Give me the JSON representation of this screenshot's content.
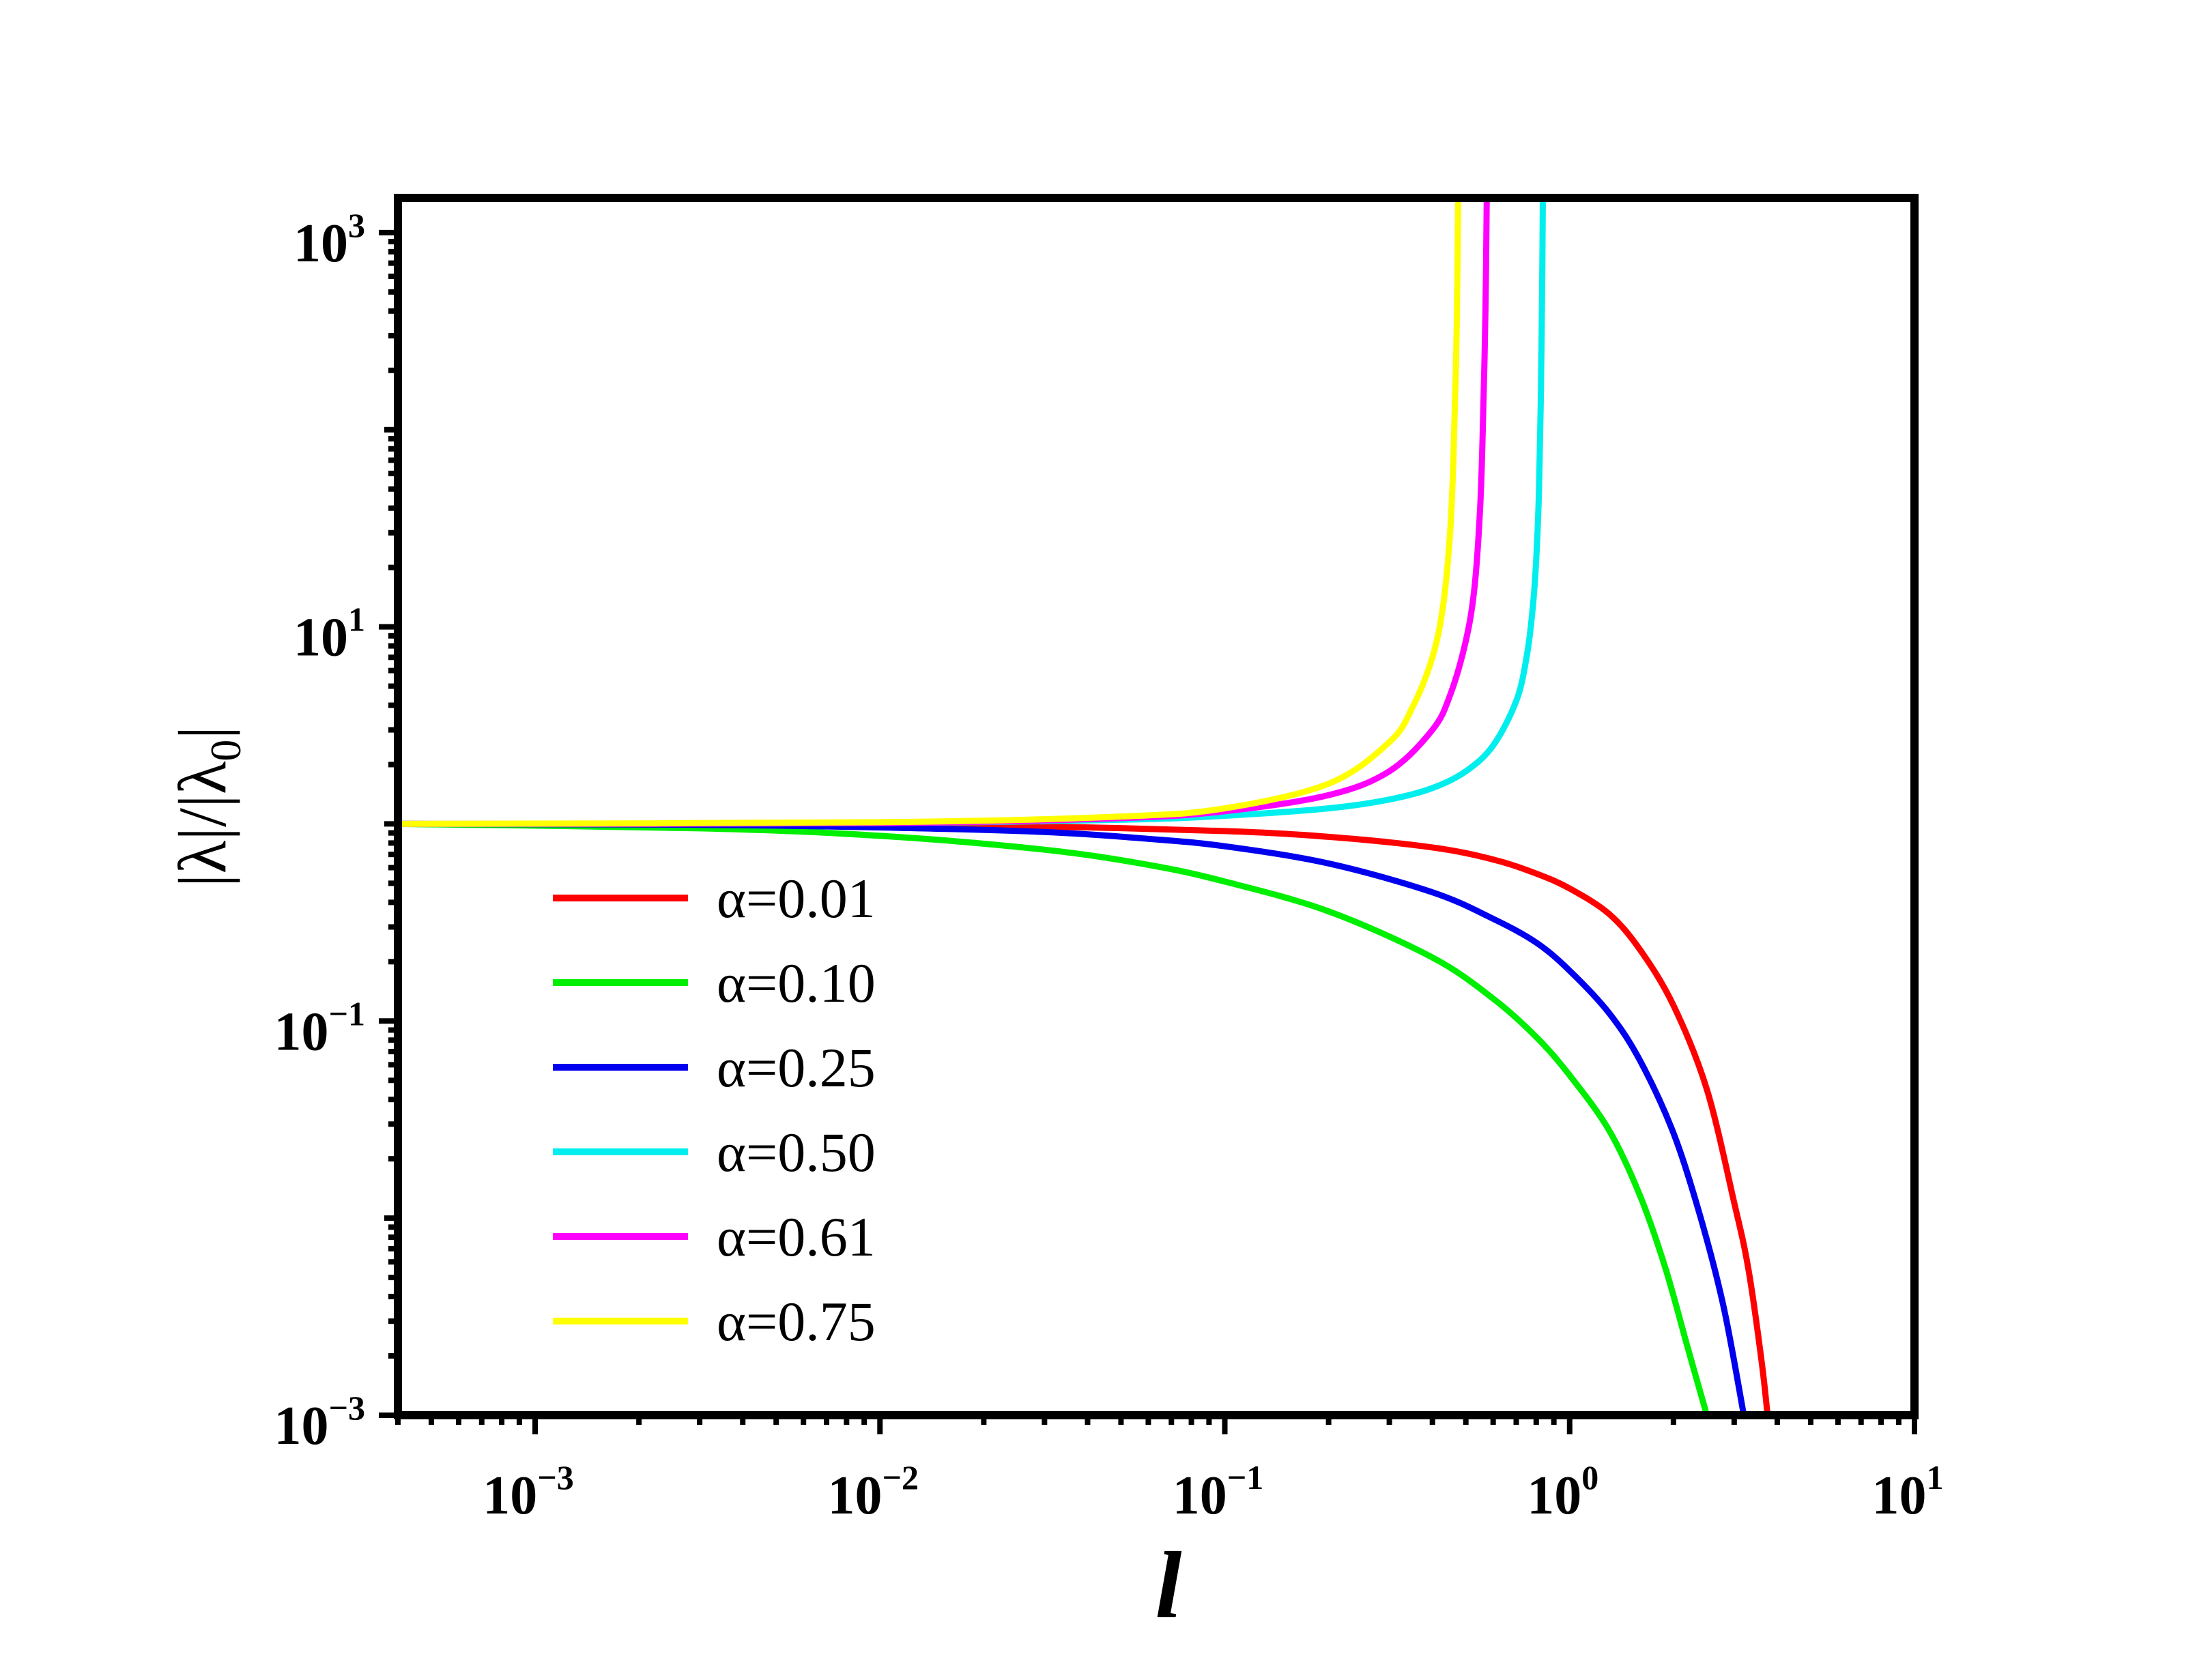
{
  "chart_data": {
    "type": "line",
    "title": "",
    "xlabel": "l",
    "ylabel": "|λ|/|λ0|",
    "ylabel_parts": {
      "prefix": "|λ|/|λ",
      "subscript": "0",
      "suffix": "|"
    },
    "xscale": "log",
    "yscale": "log",
    "xlim": [
      0.0004,
      10
    ],
    "ylim": [
      0.001,
      1500
    ],
    "x_ticks": [
      {
        "value": 0.001,
        "base": "10",
        "exp": "−3"
      },
      {
        "value": 0.01,
        "base": "10",
        "exp": "−2"
      },
      {
        "value": 0.1,
        "base": "10",
        "exp": "−1"
      },
      {
        "value": 1,
        "base": "10",
        "exp": "0"
      },
      {
        "value": 10,
        "base": "10",
        "exp": "1"
      }
    ],
    "y_ticks": [
      {
        "value": 0.001,
        "base": "10",
        "exp": "−3"
      },
      {
        "value": 0.1,
        "base": "10",
        "exp": "−1"
      },
      {
        "value": 10,
        "base": "10",
        "exp": "1"
      },
      {
        "value": 1000,
        "base": "10",
        "exp": "3"
      }
    ],
    "legend_position": "lower-left",
    "grid": false,
    "series": [
      {
        "name": "α=0.01",
        "color": "#ff0000",
        "x": [
          0.0004,
          0.01,
          0.03,
          0.1,
          0.2,
          0.4,
          0.6,
          0.8,
          1.0,
          1.3,
          1.6,
          2.0,
          2.5,
          3.0,
          3.3,
          3.6,
          3.75
        ],
        "y": [
          1.0,
          0.99,
          0.97,
          0.92,
          0.86,
          0.76,
          0.66,
          0.56,
          0.47,
          0.35,
          0.23,
          0.12,
          0.045,
          0.012,
          0.0055,
          0.0019,
          0.001
        ]
      },
      {
        "name": "α=0.10",
        "color": "#00ee00",
        "x": [
          0.0004,
          0.003,
          0.01,
          0.03,
          0.06,
          0.1,
          0.2,
          0.4,
          0.6,
          0.8,
          1.0,
          1.3,
          1.6,
          1.9,
          2.2,
          2.5
        ],
        "y": [
          1.0,
          0.95,
          0.87,
          0.74,
          0.62,
          0.51,
          0.36,
          0.21,
          0.13,
          0.083,
          0.053,
          0.028,
          0.013,
          0.0055,
          0.0022,
          0.001
        ]
      },
      {
        "name": "α=0.25",
        "color": "#0000ee",
        "x": [
          0.0004,
          0.003,
          0.01,
          0.03,
          0.06,
          0.1,
          0.2,
          0.4,
          0.6,
          0.8,
          1.0,
          1.3,
          1.6,
          2.0,
          2.4,
          2.8,
          3.2
        ],
        "y": [
          1.0,
          0.99,
          0.96,
          0.91,
          0.84,
          0.77,
          0.63,
          0.45,
          0.33,
          0.25,
          0.18,
          0.11,
          0.063,
          0.027,
          0.01,
          0.0035,
          0.001
        ]
      },
      {
        "name": "α=0.50",
        "color": "#00eeee",
        "x": [
          0.0004,
          0.01,
          0.05,
          0.1,
          0.2,
          0.3,
          0.4,
          0.5,
          0.6,
          0.7,
          0.75,
          0.78,
          0.8,
          0.815,
          0.825,
          0.832,
          0.836
        ],
        "y": [
          1.0,
          1.01,
          1.05,
          1.1,
          1.2,
          1.33,
          1.52,
          1.85,
          2.5,
          4.2,
          7.0,
          12,
          22,
          50,
          150,
          500,
          1500
        ]
      },
      {
        "name": "α=0.61",
        "color": "#ff00ff",
        "x": [
          0.0004,
          0.01,
          0.05,
          0.1,
          0.2,
          0.3,
          0.4,
          0.45,
          0.5,
          0.53,
          0.55,
          0.56,
          0.57,
          0.575
        ],
        "y": [
          1.0,
          1.01,
          1.07,
          1.16,
          1.4,
          1.85,
          3.0,
          4.5,
          8.5,
          16,
          40,
          100,
          400,
          1500
        ]
      },
      {
        "name": "α=0.75",
        "color": "#ffff00",
        "x": [
          0.0004,
          0.01,
          0.05,
          0.1,
          0.2,
          0.3,
          0.35,
          0.4,
          0.43,
          0.45,
          0.46,
          0.47,
          0.475
        ],
        "y": [
          1.0,
          1.02,
          1.09,
          1.2,
          1.6,
          2.6,
          3.9,
          7.0,
          13,
          30,
          70,
          300,
          1500
        ]
      }
    ]
  }
}
